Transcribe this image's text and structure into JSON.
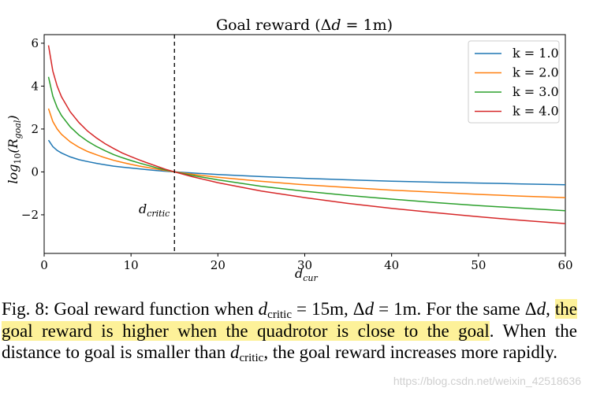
{
  "chart_data": {
    "type": "line",
    "title": "Goal reward (Δd = 1m)",
    "xlabel": "d_cur",
    "ylabel": "log10(R_goal)",
    "xlim": [
      0,
      60
    ],
    "ylim": [
      -3.8,
      6.4
    ],
    "x_ticks": [
      0,
      10,
      20,
      30,
      40,
      50,
      60
    ],
    "y_ticks": [
      -2,
      0,
      2,
      4,
      6
    ],
    "grid": false,
    "legend_position": "top-right",
    "x": [
      0.5,
      1,
      1.5,
      2,
      3,
      4,
      5,
      6,
      7,
      8,
      9,
      10,
      11,
      12,
      13,
      14,
      15,
      17,
      20,
      25,
      30,
      35,
      40,
      45,
      50,
      55,
      60
    ],
    "series": [
      {
        "name": "k = 1.0",
        "color": "#1f77b4",
        "values": [
          1.48,
          1.18,
          1.0,
          0.88,
          0.7,
          0.57,
          0.48,
          0.4,
          0.33,
          0.27,
          0.22,
          0.18,
          0.14,
          0.1,
          0.06,
          0.03,
          0.0,
          -0.05,
          -0.12,
          -0.22,
          -0.3,
          -0.37,
          -0.43,
          -0.48,
          -0.52,
          -0.56,
          -0.6
        ]
      },
      {
        "name": "k = 2.0",
        "color": "#ff7f0e",
        "values": [
          2.95,
          2.35,
          2.0,
          1.75,
          1.4,
          1.15,
          0.95,
          0.8,
          0.66,
          0.54,
          0.44,
          0.35,
          0.27,
          0.2,
          0.13,
          0.06,
          0.0,
          -0.11,
          -0.25,
          -0.44,
          -0.6,
          -0.73,
          -0.85,
          -0.95,
          -1.05,
          -1.13,
          -1.2
        ]
      },
      {
        "name": "k = 3.0",
        "color": "#2ca02c",
        "values": [
          4.43,
          3.53,
          3.0,
          2.63,
          2.1,
          1.72,
          1.43,
          1.19,
          0.99,
          0.81,
          0.66,
          0.53,
          0.41,
          0.3,
          0.19,
          0.09,
          0.0,
          -0.16,
          -0.37,
          -0.67,
          -0.9,
          -1.1,
          -1.27,
          -1.43,
          -1.57,
          -1.69,
          -1.81
        ]
      },
      {
        "name": "k = 4.0",
        "color": "#d62728",
        "values": [
          5.9,
          4.7,
          4.0,
          3.5,
          2.8,
          2.3,
          1.9,
          1.59,
          1.32,
          1.09,
          0.88,
          0.71,
          0.55,
          0.4,
          0.26,
          0.12,
          0.0,
          -0.22,
          -0.5,
          -0.89,
          -1.2,
          -1.47,
          -1.7,
          -1.9,
          -2.09,
          -2.26,
          -2.41
        ]
      }
    ],
    "annotations": [
      {
        "text": "d_critic",
        "x": 15,
        "style": "vertical dashed line"
      }
    ]
  },
  "caption": {
    "lead": "Fig. 8: Goal reward function when ",
    "dcritic_eq": "d",
    "dcritic_sub": "critic",
    "eq1": " = 15m, Δ",
    "eq1_d": "d",
    "eq2": " = 1m. For the same Δ",
    "eq2_d": "d",
    "comma": ", ",
    "highlight": "the goal reward is higher when the quadrotor is close to the goal",
    "after": ". When the distance to goal is smaller than ",
    "dcrit2": "d",
    "dcrit2_sub": "critic",
    "tail": ", the goal reward increases more rapidly."
  },
  "watermark": "https://blog.csdn.net/weixin_42518636"
}
